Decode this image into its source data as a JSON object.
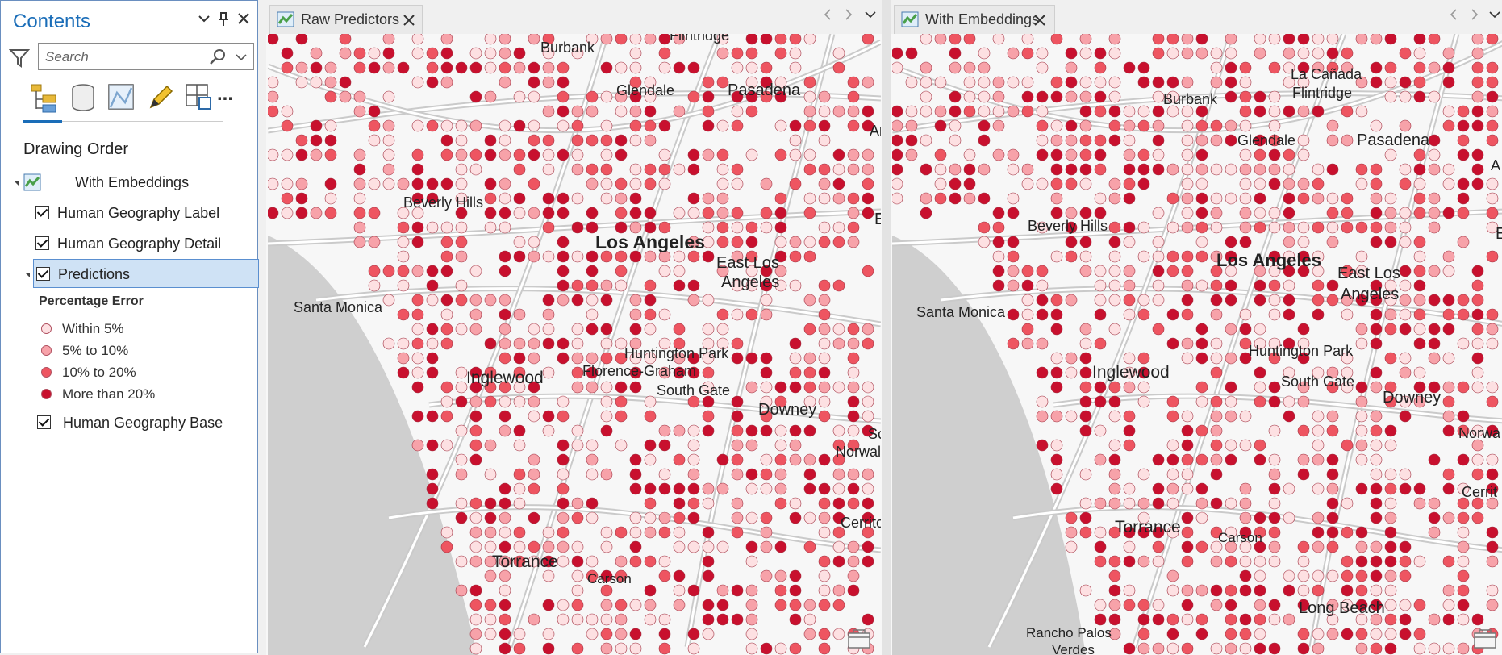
{
  "contents": {
    "title": "Contents",
    "buttons": {
      "options": "⌄",
      "pin": "⬍",
      "close": "✕"
    },
    "search": {
      "placeholder": "Search",
      "value": ""
    },
    "tool_icons": [
      "list-by-drawing-order-icon",
      "list-by-source-icon",
      "list-by-selection-icon",
      "list-by-editing-icon",
      "list-by-snapping-icon",
      "more-options-icon"
    ],
    "more_label": "...",
    "section_title": "Drawing Order",
    "map_layer": "With Embeddings",
    "layers": [
      {
        "label": "Human Geography Label",
        "checked": true
      },
      {
        "label": "Human Geography Detail",
        "checked": true
      },
      {
        "label": "Predictions",
        "checked": true,
        "selected": true
      },
      {
        "label": "Human Geography Base",
        "checked": true
      }
    ],
    "legend": {
      "title": "Percentage Error",
      "items": [
        {
          "label": "Within 5%",
          "color": "#fde0e2"
        },
        {
          "label": "5% to 10%",
          "color": "#f7a2a9"
        },
        {
          "label": "10% to 20%",
          "color": "#ee5561"
        },
        {
          "label": "More than 20%",
          "color": "#c8102e"
        }
      ]
    }
  },
  "views": [
    {
      "tab_label": "Raw Predictors",
      "labels": [
        "Burbank",
        "Flintridge",
        "Glendale",
        "Pasadena",
        "Ar",
        "Beverly Hills",
        "Los Angeles",
        "East Los",
        "Angeles",
        "E",
        "Santa Monica",
        "Huntington Park",
        "Florence-Graham",
        "Inglewood",
        "South Gate",
        "Downey",
        "Sc",
        "Norwal",
        "Cerrito",
        "Torrance",
        "Carson"
      ]
    },
    {
      "tab_label": "With Embeddings",
      "labels": [
        "La Cañada",
        "Flintridge",
        "Burbank",
        "Glendale",
        "Pasadena",
        "A",
        "Beverly Hills",
        "Los Angeles",
        "East Los",
        "Angeles",
        "E",
        "Santa Monica",
        "Huntington Park",
        "Inglewood",
        "South Gate",
        "Downey",
        "Norwa",
        "Cerrit",
        "Torrance",
        "Carson",
        "Long Beach",
        "Rancho Palos",
        "Verdes"
      ]
    }
  ],
  "colors": {
    "accent": "#1a6db8",
    "within5": "#fde0e2",
    "p5to10": "#f7a2a9",
    "p10to20": "#ee5561",
    "over20": "#c8102e",
    "ocean": "#cfcfcf",
    "land": "#f7f7f7",
    "road": "#d6d6d6"
  }
}
